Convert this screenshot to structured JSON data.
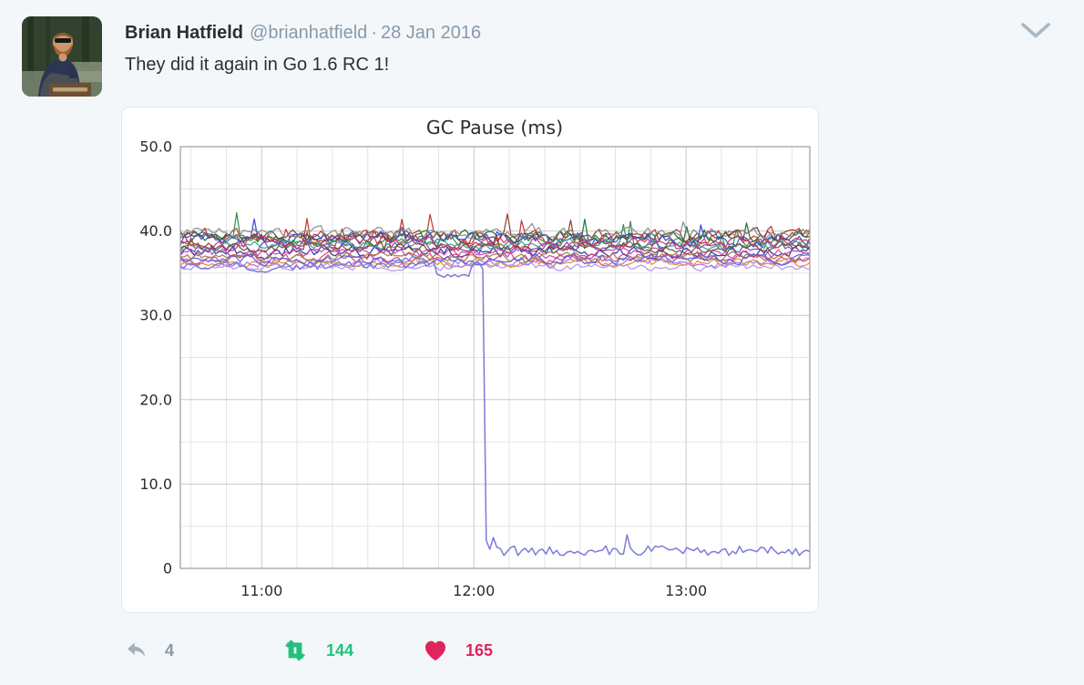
{
  "tweet": {
    "author": "Brian Hatfield",
    "handle": "@brianhatfield",
    "separator": "·",
    "date": "28 Jan 2016",
    "text": "They did it again in Go 1.6 RC 1!"
  },
  "actions": {
    "reply_count": "4",
    "retweet_count": "144",
    "like_count": "165"
  },
  "icons": {
    "reply": "reply-arrow-icon",
    "retweet": "retweet-cycle-icon",
    "like": "heart-icon",
    "caret": "chevron-down-icon"
  },
  "colors": {
    "page_background": "#f4f7fa",
    "card_border": "#e1e8ed",
    "text_primary": "#292f33",
    "text_secondary": "#8899a6",
    "reply_gray": "#a2b0ba",
    "retweet_green": "#22c17d",
    "like_red": "#e0245e",
    "grid_minor": "#e4e4e4",
    "grid_major": "#c9c9c9",
    "plot_border": "#9d9d9d",
    "tick_text": "#2c2c2c"
  },
  "chart_data": {
    "type": "line",
    "title": "GC Pause (ms)",
    "xlabel": "",
    "ylabel": "",
    "unit": "ms",
    "legend": "none",
    "grid": "major+minor",
    "x_window": {
      "start": "10:37",
      "end": "13:35"
    },
    "x_major_ticks": [
      {
        "t": "11:00",
        "label": "11:00"
      },
      {
        "t": "12:00",
        "label": "12:00"
      },
      {
        "t": "13:00",
        "label": "13:00"
      }
    ],
    "x_minor_step_minutes": 10,
    "y_axis": {
      "min": 0,
      "max": 50,
      "minor_step": 5,
      "major_ticks": [
        {
          "v": 50,
          "label": "50.0"
        },
        {
          "v": 40,
          "label": "40.0"
        },
        {
          "v": 30,
          "label": "30.0"
        },
        {
          "v": 20,
          "label": "20.0"
        },
        {
          "v": 10,
          "label": "10.0"
        },
        {
          "v": 0,
          "label": "0"
        }
      ]
    },
    "note": "Many unlabeled per-process series oscillate in a dense band ~35-43 ms across the whole window; one series (Go 1.6 RC 1) drops vertically at ~12:04 from ~35 ms to ~2 ms and stays there.",
    "band_series": {
      "y_min_ms": 34.7,
      "y_max_ms": 43.0,
      "points_per_series": 180,
      "items": [
        {
          "color": "#c03028",
          "base": 39.2,
          "amp": 1.5,
          "spike": 0.06,
          "spike_amp": 3.2
        },
        {
          "color": "#8b3a2e",
          "base": 39.5,
          "amp": 1.2,
          "spike": 0.05,
          "spike_amp": 2.6
        },
        {
          "color": "#2f8b4f",
          "base": 38.8,
          "amp": 1.3,
          "spike": 0.05,
          "spike_amp": 2.8
        },
        {
          "color": "#1e6b3a",
          "base": 39.3,
          "amp": 1.1,
          "spike": 0.04,
          "spike_amp": 2.2
        },
        {
          "color": "#3a46d6",
          "base": 39.0,
          "amp": 1.4,
          "spike": 0.05,
          "spike_amp": 3.0
        },
        {
          "color": "#2630a0",
          "base": 37.6,
          "amp": 1.3,
          "spike": 0.0,
          "spike_amp": 0
        },
        {
          "color": "#7b40cc",
          "base": 38.2,
          "amp": 1.2,
          "spike": 0.0,
          "spike_amp": 0
        },
        {
          "color": "#a36ee8",
          "base": 36.3,
          "amp": 0.9,
          "spike": 0.0,
          "spike_amp": 0
        },
        {
          "color": "#c243b4",
          "base": 37.4,
          "amp": 1.1,
          "spike": 0.0,
          "spike_amp": 0
        },
        {
          "color": "#d8447a",
          "base": 36.8,
          "amp": 1.0,
          "spike": 0.0,
          "spike_amp": 0
        },
        {
          "color": "#e08a2a",
          "base": 36.2,
          "amp": 0.8,
          "spike": 0.0,
          "spike_amp": 0
        },
        {
          "color": "#a87840",
          "base": 37.0,
          "amp": 0.9,
          "spike": 0.0,
          "spike_amp": 0
        },
        {
          "color": "#8a8a8a",
          "base": 39.8,
          "amp": 1.1,
          "spike": 0.04,
          "spike_amp": 2.0
        },
        {
          "color": "#3aa08a",
          "base": 38.4,
          "amp": 1.0,
          "spike": 0.0,
          "spike_amp": 0
        },
        {
          "color": "#7a4a28",
          "base": 38.0,
          "amp": 1.0,
          "spike": 0.03,
          "spike_amp": 2.0
        },
        {
          "color": "#b490ee",
          "base": 35.7,
          "amp": 0.7,
          "spike": 0.0,
          "spike_amp": 0
        },
        {
          "color": "#d03060",
          "base": 38.6,
          "amp": 1.2,
          "spike": 0.0,
          "spike_amp": 0
        },
        {
          "color": "#5560e0",
          "base": 36.6,
          "amp": 1.0,
          "spike": 0.0,
          "spike_amp": 0
        }
      ]
    },
    "drop_series": {
      "color": "#7b7bd8",
      "base_before_ms": 35.8,
      "amp_before": 1.0,
      "pre_drop_dip_ms": 34.5,
      "drop_time": "12:04",
      "base_after_ms": 2.1,
      "amp_after": 0.6,
      "spike_after": 0.05,
      "spike_amp_after": 1.8
    }
  }
}
